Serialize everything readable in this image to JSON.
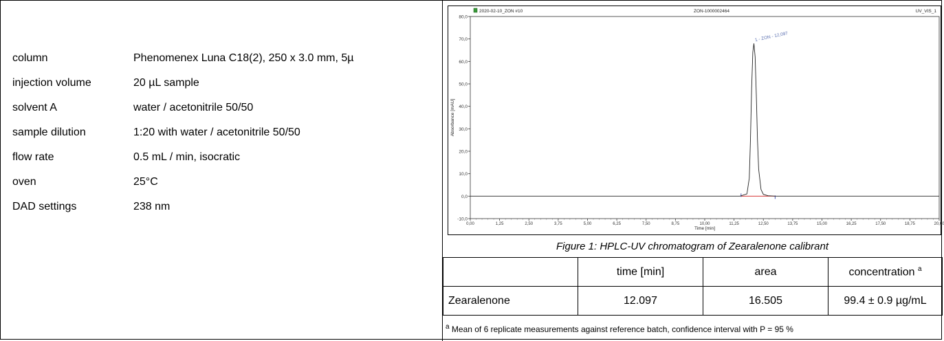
{
  "parameters": [
    {
      "label": "column",
      "value": "Phenomenex Luna C18(2), 250 x 3.0 mm, 5µ"
    },
    {
      "label": "injection volume",
      "value": "20 µL sample"
    },
    {
      "label": "solvent A",
      "value": "water / acetonitrile 50/50"
    },
    {
      "label": "sample dilution",
      "value": "1:20 with water / acetonitrile 50/50"
    },
    {
      "label": "flow rate",
      "value": "0.5 mL / min, isocratic"
    },
    {
      "label": "oven",
      "value": "25°C"
    },
    {
      "label": "DAD settings",
      "value": "238 nm"
    }
  ],
  "chart_data": {
    "type": "line",
    "header_left": "2020-02-10_ZON #10",
    "header_center": "ZON-1000002464",
    "header_right": "UV_VIS_1",
    "xlabel": "Time [min]",
    "ylabel": "Absorbance [mAU]",
    "xlim": [
      0,
      20
    ],
    "ylim": [
      -10,
      80
    ],
    "x_ticks": [
      "0,00",
      "1,25",
      "2,50",
      "3,75",
      "5,00",
      "6,25",
      "7,50",
      "8,75",
      "10,00",
      "11,25",
      "12,50",
      "13,75",
      "15,00",
      "16,25",
      "17,50",
      "18,75",
      "20,00"
    ],
    "y_ticks": [
      "-10,0",
      "0,0",
      "10,0",
      "20,0",
      "30,0",
      "40,0",
      "50,0",
      "60,0",
      "70,0",
      "80,0"
    ],
    "peak_label": "1 - ZON - 12,097",
    "series": [
      {
        "x": [
          0,
          5,
          11.5,
          11.8,
          11.9,
          11.95,
          12.0,
          12.05,
          12.097,
          12.15,
          12.2,
          12.25,
          12.3,
          12.4,
          12.5,
          12.7,
          13,
          20
        ],
        "y": [
          0,
          0,
          0,
          1,
          8,
          25,
          48,
          64,
          68,
          62,
          45,
          25,
          12,
          3,
          0.8,
          0.2,
          0,
          0
        ]
      }
    ],
    "baseline_color": "#d11a1a",
    "line_color": "#222222",
    "label_color": "#5a6fb0"
  },
  "caption": "Figure 1: HPLC-UV chromatogram of  Zearalenone calibrant",
  "results": {
    "headers": [
      "",
      "time [min]",
      "area",
      "concentration"
    ],
    "header_sup": "a",
    "row": [
      "Zearalenone",
      "12.097",
      "16.505",
      "99.4 ± 0.9 µg/mL"
    ]
  },
  "footnote_sup": "a",
  "footnote": "Mean of 6 replicate measurements against reference batch, confidence interval with P = 95 %"
}
